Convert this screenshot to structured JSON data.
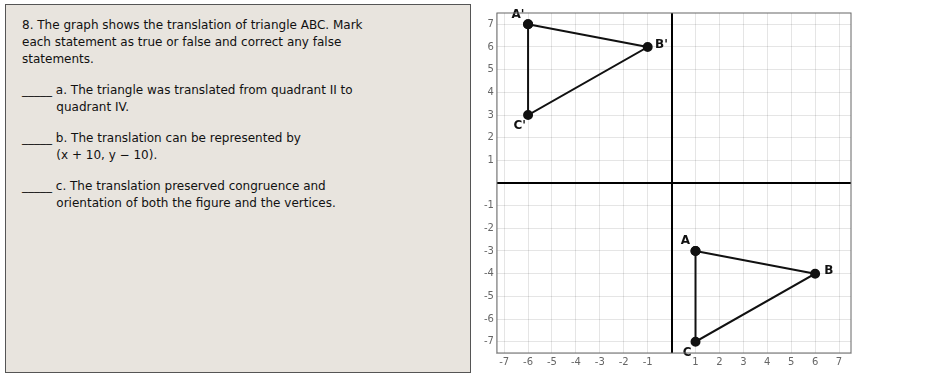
{
  "chart_data": {
    "type": "line",
    "marker": "circle",
    "title": [
      "8. The graph shows the translation of triangle ABC. Mark",
      "each statement as true or false and correct any false",
      "statements."
    ],
    "annotations": [
      [
        "_____ a. The triangle was translated from quadrant II to",
        "         quadrant IV."
      ],
      [
        "_____ b. The translation can be represented by",
        "         (x + 10, y − 10)."
      ],
      [
        "_____ c. The translation preserved congruence and",
        "         orientation of both the figure and the vertices."
      ]
    ],
    "series": [
      {
        "color": "#111111",
        "x": [
          1,
          6,
          1,
          1
        ],
        "values": [
          -3,
          -4,
          -7,
          -3
        ],
        "point_labels": [
          "A",
          "B",
          "C",
          null
        ]
      },
      {
        "color": "#111111",
        "x": [
          -6,
          -1,
          -6,
          -6
        ],
        "values": [
          7,
          6,
          3,
          7
        ],
        "point_labels": [
          "A'",
          "B'",
          "C'",
          null
        ]
      }
    ],
    "xlim": [
      -7.3,
      7.5
    ],
    "ylim": [
      -7.5,
      7.5
    ],
    "xticks": [
      -7,
      -6,
      -5,
      -4,
      -3,
      -2,
      -1,
      {
        "value": 0,
        "label": null
      },
      1,
      2,
      3,
      4,
      5,
      6,
      7
    ],
    "yticks": [
      -7,
      -6,
      -5,
      -4,
      -3,
      -2,
      -1,
      {
        "value": 0,
        "label": null
      },
      1,
      2,
      3,
      4,
      5,
      6,
      7
    ],
    "grid": true
  }
}
